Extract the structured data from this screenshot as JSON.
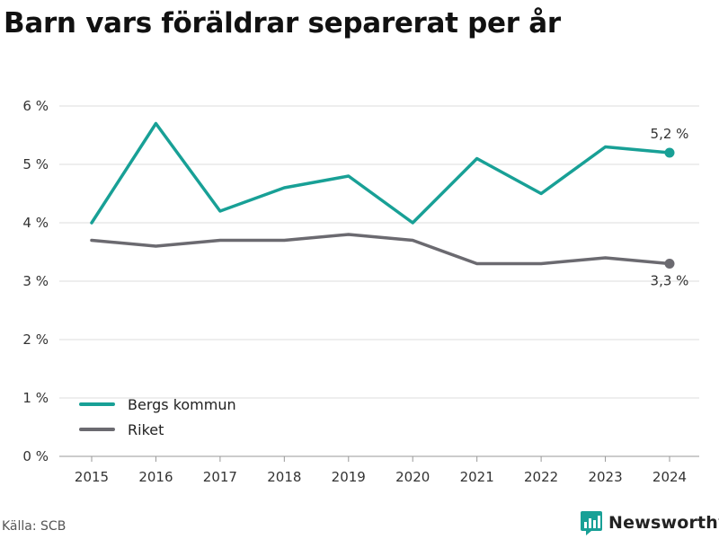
{
  "title": "Barn vars föräldrar separerat per år",
  "source": "Källa: SCB",
  "brand": {
    "name": "Newsworthy",
    "icon": "bar-chart-speech-bubble-icon",
    "color": "#18a096"
  },
  "chart_data": {
    "type": "line",
    "x": [
      "2015",
      "2016",
      "2017",
      "2018",
      "2019",
      "2020",
      "2021",
      "2022",
      "2023",
      "2024"
    ],
    "yticks": [
      "0 %",
      "1 %",
      "2 %",
      "3 %",
      "4 %",
      "5 %",
      "6 %"
    ],
    "ylim": [
      0,
      6
    ],
    "grid": true,
    "legend_position": "bottom-left",
    "series": [
      {
        "name": "Bergs kommun",
        "color": "#18a096",
        "values": [
          4.0,
          5.7,
          4.2,
          4.6,
          4.8,
          4.0,
          5.1,
          4.5,
          5.3,
          5.2
        ],
        "end_label": "5,2 %"
      },
      {
        "name": "Riket",
        "color": "#6b6a70",
        "values": [
          3.7,
          3.6,
          3.7,
          3.7,
          3.8,
          3.7,
          3.3,
          3.3,
          3.4,
          3.3
        ],
        "end_label": "3,3 %"
      }
    ]
  }
}
